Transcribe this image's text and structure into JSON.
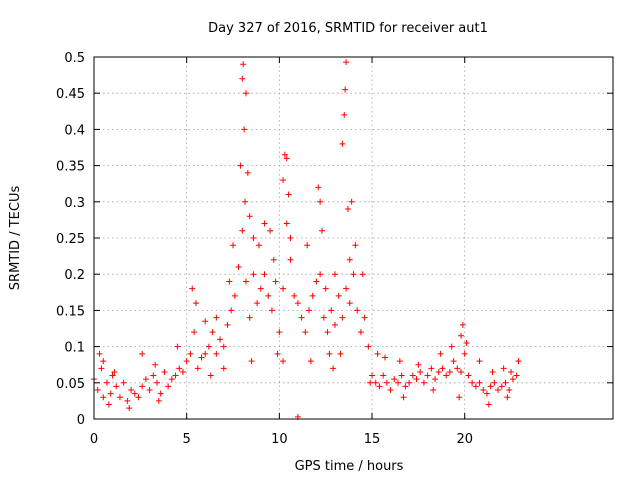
{
  "chart_data": {
    "type": "scatter",
    "title": "Day 327 of 2016, SRMTID for receiver aut1",
    "xlabel": "GPS time / hours",
    "ylabel": "SRMTID / TECUs",
    "xlim": [
      0,
      28
    ],
    "ylim": [
      0,
      0.5
    ],
    "xticks": [
      0,
      5,
      10,
      15,
      20
    ],
    "xtick_labels": [
      "0",
      "5",
      "10",
      "15",
      "20"
    ],
    "yticks": [
      0,
      0.05,
      0.1,
      0.15,
      0.2,
      0.25,
      0.3,
      0.35,
      0.4,
      0.45,
      0.5
    ],
    "ytick_labels": [
      "0",
      "0.05",
      "0.1",
      "0.15",
      "0.2",
      "0.25",
      "0.3",
      "0.35",
      "0.4",
      "0.45",
      "0.5"
    ],
    "grid": true,
    "marker": "+",
    "series": [
      {
        "name": "aut1",
        "color": "#ff0000",
        "points": [
          [
            0.0,
            0.055
          ],
          [
            0.2,
            0.04
          ],
          [
            0.4,
            0.07
          ],
          [
            0.5,
            0.03
          ],
          [
            0.7,
            0.05
          ],
          [
            0.9,
            0.035
          ],
          [
            1.0,
            0.06
          ],
          [
            1.2,
            0.045
          ],
          [
            1.4,
            0.03
          ],
          [
            1.6,
            0.05
          ],
          [
            1.8,
            0.025
          ],
          [
            2.0,
            0.04
          ],
          [
            2.2,
            0.035
          ],
          [
            2.4,
            0.03
          ],
          [
            2.6,
            0.045
          ],
          [
            2.8,
            0.055
          ],
          [
            3.0,
            0.04
          ],
          [
            3.2,
            0.06
          ],
          [
            3.4,
            0.05
          ],
          [
            3.6,
            0.035
          ],
          [
            3.8,
            0.065
          ],
          [
            4.0,
            0.045
          ],
          [
            4.2,
            0.055
          ],
          [
            4.4,
            0.06
          ],
          [
            4.6,
            0.07
          ],
          [
            4.8,
            0.065
          ],
          [
            5.0,
            0.08
          ],
          [
            5.2,
            0.09
          ],
          [
            5.4,
            0.12
          ],
          [
            5.6,
            0.07
          ],
          [
            5.8,
            0.085
          ],
          [
            6.0,
            0.09
          ],
          [
            6.2,
            0.1
          ],
          [
            6.4,
            0.12
          ],
          [
            6.6,
            0.09
          ],
          [
            6.8,
            0.11
          ],
          [
            7.0,
            0.1
          ],
          [
            7.2,
            0.13
          ],
          [
            7.4,
            0.15
          ],
          [
            7.6,
            0.17
          ],
          [
            7.8,
            0.21
          ],
          [
            8.0,
            0.26
          ],
          [
            8.2,
            0.19
          ],
          [
            8.4,
            0.14
          ],
          [
            8.6,
            0.2
          ],
          [
            8.8,
            0.16
          ],
          [
            9.0,
            0.18
          ],
          [
            9.2,
            0.2
          ],
          [
            9.4,
            0.17
          ],
          [
            9.6,
            0.15
          ],
          [
            9.8,
            0.19
          ],
          [
            10.0,
            0.12
          ],
          [
            10.2,
            0.18
          ],
          [
            10.4,
            0.27
          ],
          [
            10.6,
            0.22
          ],
          [
            10.8,
            0.17
          ],
          [
            11.0,
            0.16
          ],
          [
            11.2,
            0.14
          ],
          [
            11.4,
            0.12
          ],
          [
            11.6,
            0.15
          ],
          [
            11.8,
            0.17
          ],
          [
            12.0,
            0.19
          ],
          [
            12.2,
            0.2
          ],
          [
            12.4,
            0.14
          ],
          [
            12.6,
            0.12
          ],
          [
            12.8,
            0.15
          ],
          [
            13.0,
            0.13
          ],
          [
            13.2,
            0.17
          ],
          [
            13.4,
            0.14
          ],
          [
            13.6,
            0.18
          ],
          [
            13.8,
            0.16
          ],
          [
            14.0,
            0.2
          ],
          [
            14.2,
            0.15
          ],
          [
            14.4,
            0.12
          ],
          [
            14.6,
            0.14
          ],
          [
            14.8,
            0.1
          ],
          [
            15.0,
            0.06
          ],
          [
            15.2,
            0.05
          ],
          [
            15.4,
            0.045
          ],
          [
            15.6,
            0.06
          ],
          [
            15.8,
            0.05
          ],
          [
            16.0,
            0.04
          ],
          [
            16.2,
            0.055
          ],
          [
            16.4,
            0.05
          ],
          [
            16.6,
            0.06
          ],
          [
            16.8,
            0.045
          ],
          [
            17.0,
            0.05
          ],
          [
            17.2,
            0.06
          ],
          [
            17.4,
            0.055
          ],
          [
            17.6,
            0.065
          ],
          [
            17.8,
            0.05
          ],
          [
            18.0,
            0.06
          ],
          [
            18.2,
            0.07
          ],
          [
            18.4,
            0.055
          ],
          [
            18.6,
            0.065
          ],
          [
            18.8,
            0.07
          ],
          [
            19.0,
            0.06
          ],
          [
            19.2,
            0.065
          ],
          [
            19.4,
            0.08
          ],
          [
            19.6,
            0.07
          ],
          [
            19.8,
            0.065
          ],
          [
            20.0,
            0.09
          ],
          [
            20.2,
            0.06
          ],
          [
            20.4,
            0.05
          ],
          [
            20.6,
            0.045
          ],
          [
            20.8,
            0.05
          ],
          [
            21.0,
            0.04
          ],
          [
            21.2,
            0.035
          ],
          [
            21.4,
            0.045
          ],
          [
            21.6,
            0.05
          ],
          [
            21.8,
            0.04
          ],
          [
            22.0,
            0.045
          ],
          [
            22.2,
            0.05
          ],
          [
            22.4,
            0.04
          ],
          [
            22.6,
            0.055
          ],
          [
            22.8,
            0.06
          ],
          [
            0.3,
            0.09
          ],
          [
            0.5,
            0.08
          ],
          [
            1.1,
            0.065
          ],
          [
            2.6,
            0.09
          ],
          [
            3.3,
            0.075
          ],
          [
            4.5,
            0.1
          ],
          [
            5.3,
            0.18
          ],
          [
            5.5,
            0.16
          ],
          [
            6.0,
            0.135
          ],
          [
            6.6,
            0.14
          ],
          [
            7.3,
            0.19
          ],
          [
            7.5,
            0.24
          ],
          [
            7.9,
            0.35
          ],
          [
            8.0,
            0.47
          ],
          [
            8.05,
            0.49
          ],
          [
            8.1,
            0.4
          ],
          [
            8.15,
            0.3
          ],
          [
            8.2,
            0.45
          ],
          [
            8.3,
            0.34
          ],
          [
            8.4,
            0.28
          ],
          [
            8.6,
            0.25
          ],
          [
            8.9,
            0.24
          ],
          [
            9.2,
            0.27
          ],
          [
            9.5,
            0.26
          ],
          [
            9.7,
            0.22
          ],
          [
            10.2,
            0.33
          ],
          [
            10.3,
            0.365
          ],
          [
            10.4,
            0.36
          ],
          [
            10.5,
            0.31
          ],
          [
            10.6,
            0.25
          ],
          [
            10.2,
            0.08
          ],
          [
            11.0,
            0.003
          ],
          [
            11.5,
            0.24
          ],
          [
            12.1,
            0.32
          ],
          [
            12.2,
            0.3
          ],
          [
            12.3,
            0.26
          ],
          [
            12.5,
            0.18
          ],
          [
            12.7,
            0.09
          ],
          [
            13.0,
            0.2
          ],
          [
            13.3,
            0.09
          ],
          [
            13.4,
            0.38
          ],
          [
            13.5,
            0.42
          ],
          [
            13.55,
            0.455
          ],
          [
            13.6,
            0.493
          ],
          [
            13.7,
            0.29
          ],
          [
            13.8,
            0.22
          ],
          [
            13.9,
            0.3
          ],
          [
            14.1,
            0.24
          ],
          [
            14.5,
            0.2
          ],
          [
            15.3,
            0.09
          ],
          [
            15.7,
            0.085
          ],
          [
            16.5,
            0.08
          ],
          [
            17.5,
            0.075
          ],
          [
            18.7,
            0.09
          ],
          [
            19.3,
            0.1
          ],
          [
            19.8,
            0.115
          ],
          [
            19.9,
            0.13
          ],
          [
            20.1,
            0.105
          ],
          [
            20.8,
            0.08
          ],
          [
            21.5,
            0.065
          ],
          [
            22.1,
            0.07
          ],
          [
            22.5,
            0.065
          ],
          [
            22.9,
            0.08
          ],
          [
            0.8,
            0.02
          ],
          [
            1.9,
            0.015
          ],
          [
            3.5,
            0.025
          ],
          [
            6.3,
            0.06
          ],
          [
            7.0,
            0.07
          ],
          [
            8.5,
            0.08
          ],
          [
            9.9,
            0.09
          ],
          [
            11.7,
            0.08
          ],
          [
            12.9,
            0.07
          ],
          [
            14.9,
            0.05
          ],
          [
            16.7,
            0.03
          ],
          [
            18.3,
            0.04
          ],
          [
            19.7,
            0.03
          ],
          [
            21.3,
            0.02
          ],
          [
            22.3,
            0.03
          ]
        ]
      }
    ]
  }
}
